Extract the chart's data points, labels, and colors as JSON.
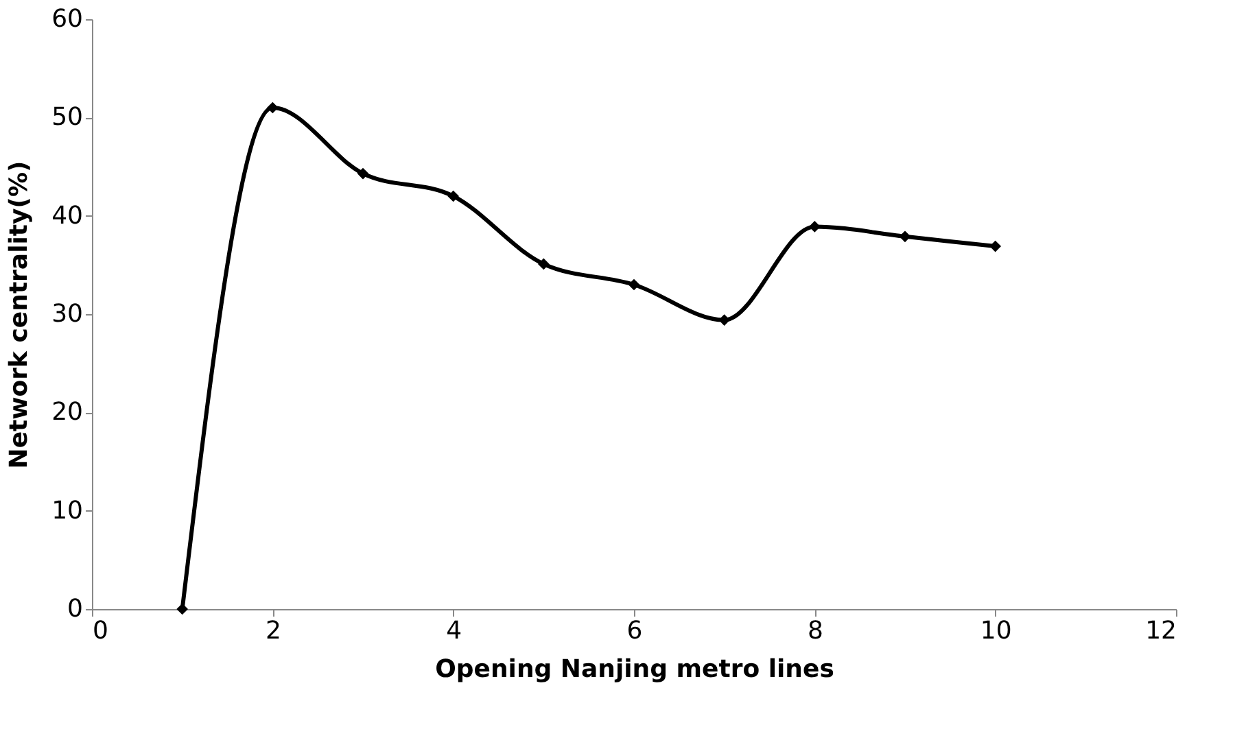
{
  "chart_data": {
    "type": "line",
    "xlabel": "Opening Nanjing metro lines",
    "ylabel": "Network centrality(%)",
    "x": [
      1,
      2,
      3,
      4,
      5,
      6,
      7,
      8,
      9,
      10
    ],
    "series": [
      {
        "color": "#000000",
        "values": [
          0,
          51,
          44.3,
          42,
          35.1,
          33,
          29.4,
          38.9,
          37.9,
          36.9
        ]
      }
    ],
    "xlim": [
      0,
      12
    ],
    "xticks": [
      0,
      2,
      4,
      6,
      8,
      10,
      12
    ],
    "ylim": [
      0,
      60
    ],
    "yticks": [
      0,
      10,
      20,
      30,
      40,
      50,
      60
    ],
    "grid": false,
    "marker": "diamond",
    "line_style": "solid"
  }
}
